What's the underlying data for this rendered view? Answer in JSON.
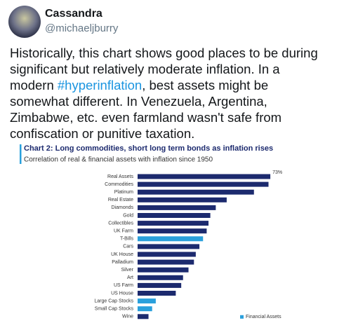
{
  "tweet": {
    "name": "Cassandra",
    "handle": "@michaeljburry",
    "text_lines": [
      "Historically, this chart shows good places to be during",
      "significant but relatively moderate inflation. In a",
      {
        "before": "modern ",
        "hashtag": "#hyperinflation",
        "after": ", best assets might be"
      },
      "somewhat different. In Venezuela, Argentina,",
      "Zimbabwe, etc. even farmland wasn't safe from",
      "confiscation or punitive taxation."
    ]
  },
  "chart_data": {
    "type": "bar",
    "orientation": "horizontal",
    "title": "Chart 2: Long commodities, short long term bonds as inflation rises",
    "subtitle": "Correlation of real & financial assets with inflation since 1950",
    "categories": [
      "Real Assets",
      "Commodities",
      "Platinum",
      "Real Estate",
      "Diamonds",
      "Gold",
      "Collectibles",
      "UK Farm",
      "T-Bills",
      "Cars",
      "UK House",
      "Palladium",
      "Silver",
      "Art",
      "US Farm",
      "US House",
      "Large Cap Stocks",
      "Small Cap Stocks",
      "Wine"
    ],
    "values": [
      73,
      72,
      64,
      49,
      43,
      40,
      39,
      38,
      36,
      34,
      32,
      31,
      28,
      25,
      24,
      21,
      10,
      8,
      6
    ],
    "value_labels": [
      "73%",
      null,
      null,
      null,
      null,
      null,
      null,
      null,
      null,
      null,
      null,
      null,
      null,
      null,
      null,
      null,
      null,
      null,
      null
    ],
    "bar_colors": [
      "#1c2a6e",
      "#1c2a6e",
      "#1c2a6e",
      "#1c2a6e",
      "#1c2a6e",
      "#1c2a6e",
      "#1c2a6e",
      "#1c2a6e",
      "#2aa0dc",
      "#1c2a6e",
      "#1c2a6e",
      "#1c2a6e",
      "#1c2a6e",
      "#1c2a6e",
      "#1c2a6e",
      "#1c2a6e",
      "#2aa0dc",
      "#2aa0dc",
      "#1c2a6e"
    ],
    "xlim": [
      0,
      100
    ],
    "legend": {
      "label": "Financial Assets",
      "color": "#2aa0dc"
    }
  }
}
